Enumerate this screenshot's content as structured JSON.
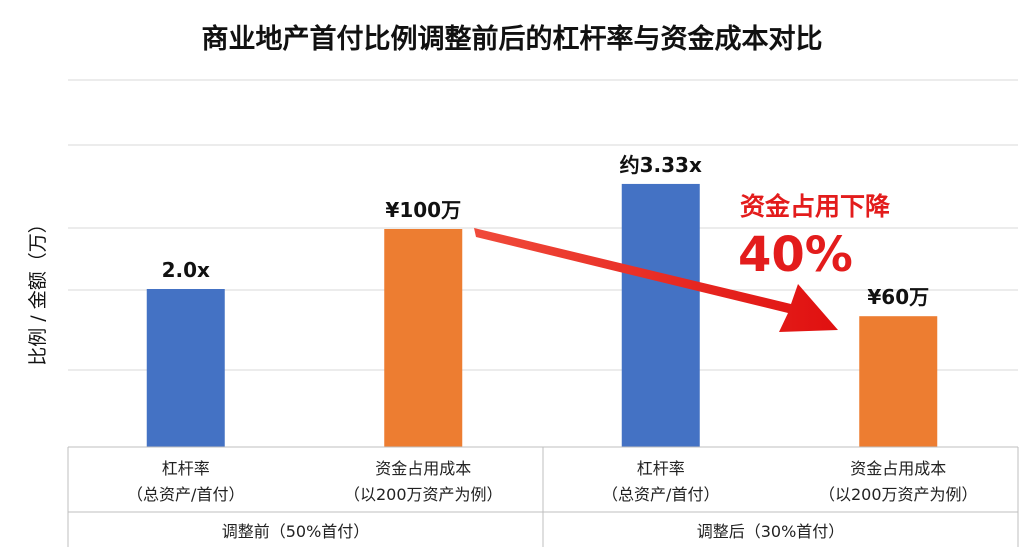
{
  "chart_data": {
    "type": "bar",
    "title": "商业地产首付比例调整前后的杠杆率与资金成本对比",
    "ylabel": "比例 / 金额（万）",
    "grid": true,
    "categories": [
      {
        "label": "杠杆率",
        "sublabel": "（总资产/首付）",
        "group": 0,
        "value": 2.0,
        "display": "2.0x",
        "color": "#4472c4"
      },
      {
        "label": "资金占用成本",
        "sublabel": "（以200万资产为例）",
        "group": 0,
        "value": 100,
        "display": "¥100万",
        "color": "#ed7d31"
      },
      {
        "label": "杠杆率",
        "sublabel": "（总资产/首付）",
        "group": 1,
        "value": 3.33,
        "display": "约3.33x",
        "color": "#4472c4"
      },
      {
        "label": "资金占用成本",
        "sublabel": "（以200万资产为例）",
        "group": 1,
        "value": 60,
        "display": "¥60万",
        "color": "#ed7d31"
      }
    ],
    "groups": [
      {
        "label": "调整前（50%首付）"
      },
      {
        "label": "调整后（30%首付）"
      }
    ],
    "annotation": {
      "line1": "资金占用下降",
      "line2": "40%",
      "color": "#e31c1c"
    }
  }
}
